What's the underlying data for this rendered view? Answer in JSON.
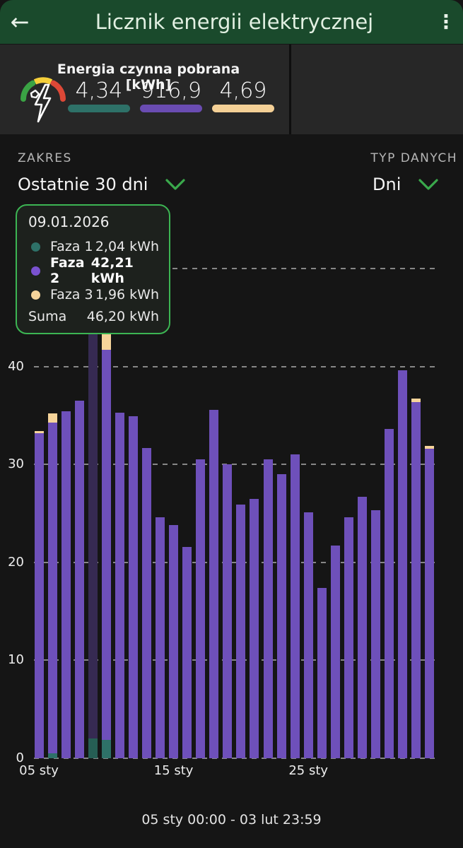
{
  "header": {
    "title": "Licznik energii elektrycznej",
    "back_icon": "←",
    "menu_icon": "⋮"
  },
  "summary": {
    "title": "Energia czynna pobrana [kWh]",
    "gauge_icon": "speedometer-lightning",
    "gauge_colors": {
      "green": "#3aa344",
      "yellow": "#f5cf3a",
      "red": "#dd4837"
    },
    "phases": [
      {
        "name": "Faza 1",
        "value": "4,34",
        "color": "#2e7168"
      },
      {
        "name": "Faza 2",
        "value": "916,9",
        "color": "#6a4cb2"
      },
      {
        "name": "Faza 3",
        "value": "4,69",
        "color": "#f4d096"
      }
    ]
  },
  "filters": {
    "zakres_label": "ZAKRES",
    "zakres_value": "Ostatnie 30 dni",
    "typ_label": "TYP DANYCH",
    "typ_value": "Dni",
    "accent_color": "#3aa94c"
  },
  "tooltip": {
    "date": "09.01.2026",
    "rows": [
      {
        "label": "Faza 1",
        "value": "2,04 kWh",
        "color": "#2e7168",
        "bold": false
      },
      {
        "label": "Faza 2",
        "value": "42,21 kWh",
        "color": "#7a52d0",
        "bold": true
      },
      {
        "label": "Faza 3",
        "value": "1,96 kWh",
        "color": "#f6d49a",
        "bold": false
      }
    ],
    "suma_label": "Suma",
    "suma_value": "46,20 kWh",
    "border_color": "#3cb553"
  },
  "chart_data": {
    "type": "bar",
    "stacked": true,
    "unit": "kWh",
    "title": "",
    "xlabel": "",
    "ylabel": "",
    "ylim": [
      0,
      50
    ],
    "yticks": [
      0,
      10,
      20,
      30,
      40
    ],
    "grid_values": [
      0,
      10,
      20,
      30,
      40,
      50
    ],
    "grid": true,
    "legend_position": "none",
    "series_names": [
      "Faza 1",
      "Faza 2",
      "Faza 3"
    ],
    "colors": {
      "faza1": "#2e7168",
      "faza2": "#6e50ba",
      "faza3": "#f6d49a",
      "faza1_selected": "#265e54",
      "faza2_selected": "#362a52"
    },
    "xtick_labels": [
      {
        "index": 0,
        "label": "05 sty"
      },
      {
        "index": 10,
        "label": "15 sty"
      },
      {
        "index": 20,
        "label": "25 sty"
      }
    ],
    "bars": [
      {
        "date": "05.01",
        "faza1": 0,
        "faza2": 33.2,
        "faza3": 0.2,
        "total": 33.4,
        "selected": false
      },
      {
        "date": "06.01",
        "faza1": 0.5,
        "faza2": 33.8,
        "faza3": 0.9,
        "total": 35.2,
        "selected": false
      },
      {
        "date": "07.01",
        "faza1": 0,
        "faza2": 35.4,
        "faza3": 0,
        "total": 35.4,
        "selected": false
      },
      {
        "date": "08.01",
        "faza1": 0,
        "faza2": 36.5,
        "faza3": 0,
        "total": 36.5,
        "selected": false
      },
      {
        "date": "09.01",
        "faza1": 2.04,
        "faza2": 42.21,
        "faza3": 1.96,
        "total": 46.2,
        "selected": true
      },
      {
        "date": "10.01",
        "faza1": 1.9,
        "faza2": 39.8,
        "faza3": 1.7,
        "total": 43.4,
        "selected": false
      },
      {
        "date": "11.01",
        "faza1": 0,
        "faza2": 35.3,
        "faza3": 0,
        "total": 35.3,
        "selected": false
      },
      {
        "date": "12.01",
        "faza1": 0,
        "faza2": 34.9,
        "faza3": 0,
        "total": 34.9,
        "selected": false
      },
      {
        "date": "13.01",
        "faza1": 0,
        "faza2": 31.7,
        "faza3": 0,
        "total": 31.7,
        "selected": false
      },
      {
        "date": "14.01",
        "faza1": 0,
        "faza2": 24.6,
        "faza3": 0,
        "total": 24.6,
        "selected": false
      },
      {
        "date": "15.01",
        "faza1": 0,
        "faza2": 23.8,
        "faza3": 0,
        "total": 23.8,
        "selected": false
      },
      {
        "date": "16.01",
        "faza1": 0,
        "faza2": 21.6,
        "faza3": 0,
        "total": 21.6,
        "selected": false
      },
      {
        "date": "17.01",
        "faza1": 0,
        "faza2": 30.5,
        "faza3": 0,
        "total": 30.5,
        "selected": false
      },
      {
        "date": "18.01",
        "faza1": 0,
        "faza2": 35.6,
        "faza3": 0,
        "total": 35.6,
        "selected": false
      },
      {
        "date": "19.01",
        "faza1": 0,
        "faza2": 30.0,
        "faza3": 0,
        "total": 30.0,
        "selected": false
      },
      {
        "date": "20.01",
        "faza1": 0,
        "faza2": 25.9,
        "faza3": 0,
        "total": 25.9,
        "selected": false
      },
      {
        "date": "21.01",
        "faza1": 0,
        "faza2": 26.5,
        "faza3": 0,
        "total": 26.5,
        "selected": false
      },
      {
        "date": "22.01",
        "faza1": 0,
        "faza2": 30.5,
        "faza3": 0,
        "total": 30.5,
        "selected": false
      },
      {
        "date": "23.01",
        "faza1": 0,
        "faza2": 29.0,
        "faza3": 0,
        "total": 29.0,
        "selected": false
      },
      {
        "date": "24.01",
        "faza1": 0,
        "faza2": 31.0,
        "faza3": 0,
        "total": 31.0,
        "selected": false
      },
      {
        "date": "25.01",
        "faza1": 0,
        "faza2": 25.1,
        "faza3": 0,
        "total": 25.1,
        "selected": false
      },
      {
        "date": "26.01",
        "faza1": 0,
        "faza2": 17.4,
        "faza3": 0,
        "total": 17.4,
        "selected": false
      },
      {
        "date": "27.01",
        "faza1": 0,
        "faza2": 21.7,
        "faza3": 0,
        "total": 21.7,
        "selected": false
      },
      {
        "date": "28.01",
        "faza1": 0,
        "faza2": 24.6,
        "faza3": 0,
        "total": 24.6,
        "selected": false
      },
      {
        "date": "29.01",
        "faza1": 0,
        "faza2": 26.7,
        "faza3": 0,
        "total": 26.7,
        "selected": false
      },
      {
        "date": "30.01",
        "faza1": 0,
        "faza2": 25.3,
        "faza3": 0,
        "total": 25.3,
        "selected": false
      },
      {
        "date": "31.01",
        "faza1": 0,
        "faza2": 33.6,
        "faza3": 0,
        "total": 33.6,
        "selected": false
      },
      {
        "date": "01.02",
        "faza1": 0,
        "faza2": 39.6,
        "faza3": 0,
        "total": 39.6,
        "selected": false
      },
      {
        "date": "02.02",
        "faza1": 0,
        "faza2": 36.4,
        "faza3": 0.3,
        "total": 36.7,
        "selected": false
      },
      {
        "date": "03.02",
        "faza1": 0,
        "faza2": 31.6,
        "faza3": 0.3,
        "total": 31.9,
        "selected": false
      }
    ]
  },
  "footer": {
    "range_text": "05 sty 00:00 - 03 lut 23:59"
  }
}
